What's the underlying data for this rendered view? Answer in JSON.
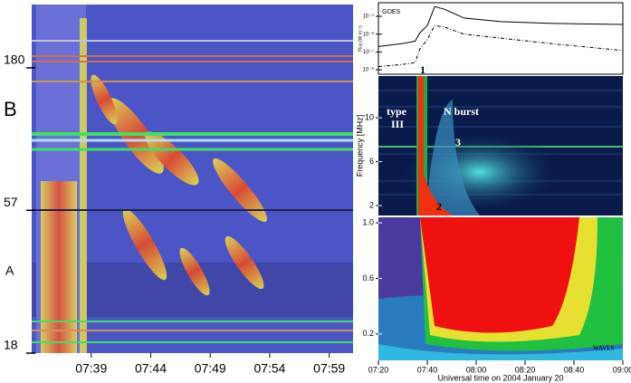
{
  "chart_data": [
    {
      "type": "spectrogram",
      "log_y": true,
      "ylim": [
        18,
        300
      ],
      "yticks": [
        180,
        57,
        18
      ],
      "band_labels": [
        "B",
        "A"
      ],
      "xlim": [
        "07:34",
        "08:01"
      ],
      "xticks": [
        "07:39",
        "07:44",
        "07:49",
        "07:54",
        "07:59"
      ]
    },
    {
      "type": "line",
      "label": "GOES",
      "ylabel": "Flux (W m⁻²)",
      "log_y": true,
      "ylim": [
        5.6e-09,
        5.8e-05
      ],
      "yticks": [
        {
          "value": 1e-05,
          "label": "10⁻⁵"
        },
        {
          "value": 1e-06,
          "label": "10⁻⁶"
        },
        {
          "value": 1e-07,
          "label": "10⁻⁷"
        },
        {
          "value": 1e-08,
          "label": "10⁻⁸"
        }
      ],
      "xlim": [
        "07:20",
        "09:00"
      ],
      "annotations": [
        "1"
      ],
      "x": [
        "07:20",
        "07:30",
        "07:35",
        "07:37",
        "07:40",
        "07:43",
        "07:47",
        "07:55",
        "08:10",
        "08:30",
        "09:00"
      ],
      "series": [
        {
          "color": "#000000",
          "style": "solid",
          "values": [
            2e-07,
            3e-07,
            4e-07,
            1.2e-06,
            3e-06,
            3.5e-05,
            2.5e-05,
            8e-06,
            5e-06,
            4e-06,
            3.5e-06
          ]
        },
        {
          "color": "#000000",
          "style": "dashdot",
          "values": [
            1.5e-08,
            2e-08,
            2.5e-08,
            1.5e-07,
            5e-07,
            3e-06,
            2.5e-06,
            1e-06,
            6e-07,
            3e-07,
            1.2e-07
          ]
        }
      ]
    },
    {
      "type": "spectrogram",
      "ylabel": "Frequency [MHz]",
      "ylim": [
        1.1,
        13.8
      ],
      "yticks": [
        10,
        6,
        2
      ],
      "xlim": [
        "07:20",
        "09:00"
      ],
      "annotations": [
        "type",
        "III",
        "N burst",
        "3",
        "2"
      ]
    },
    {
      "type": "spectrogram",
      "ylim": [
        0.01,
        1.04
      ],
      "yticks": [
        {
          "value": 1,
          "label": "1.0"
        },
        0.6,
        0.2
      ],
      "xlim": [
        "07:20",
        "09:00"
      ],
      "annotations": [
        "WAVES"
      ],
      "xticks": [
        "07:20",
        "07:40",
        "08:00",
        "08:20",
        "08:40",
        "09:00"
      ],
      "xlabel": "Universal time on 2004 January 20"
    }
  ]
}
